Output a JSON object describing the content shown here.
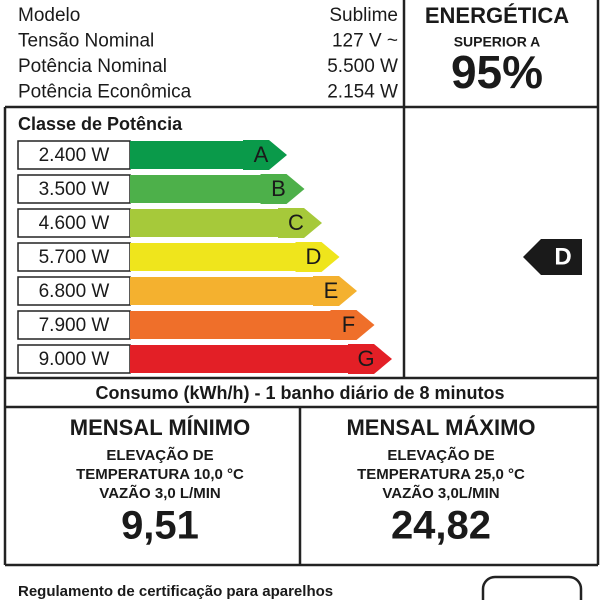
{
  "specs": [
    {
      "label": "Modelo",
      "value": "Sublime"
    },
    {
      "label": "Tensão Nominal",
      "value": "127 V ~"
    },
    {
      "label": "Potência Nominal",
      "value": "5.500 W"
    },
    {
      "label": "Potência Econômica",
      "value": "2.154 W"
    }
  ],
  "efficiency": {
    "heading": "ENERGÉTICA",
    "subheading": "SUPERIOR A",
    "value": "95%"
  },
  "power_class": {
    "title": "Classe de Potência",
    "rows": [
      {
        "power": "2.400 W",
        "class": "A",
        "color": "#0a9a4a"
      },
      {
        "power": "3.500 W",
        "class": "B",
        "color": "#4db04a"
      },
      {
        "power": "4.600 W",
        "class": "C",
        "color": "#a6c93a"
      },
      {
        "power": "5.700 W",
        "class": "D",
        "color": "#efe51c"
      },
      {
        "power": "6.800 W",
        "class": "E",
        "color": "#f4b12f"
      },
      {
        "power": "7.900 W",
        "class": "F",
        "color": "#ef6f2a"
      },
      {
        "power": "9.000 W",
        "class": "G",
        "color": "#e31f26"
      }
    ],
    "current_class": "D"
  },
  "consumption": {
    "title": "Consumo (kWh/h) - 1 banho diário de 8 minutos",
    "minimum": {
      "title": "MENSAL MÍNIMO",
      "lines": [
        "ELEVAÇÃO DE",
        "TEMPERATURA 10,0 °C",
        "VAZÃO 3,0 L/MIN"
      ],
      "value": "9,51"
    },
    "maximum": {
      "title": "MENSAL MÁXIMO",
      "lines": [
        "ELEVAÇÃO DE",
        "TEMPERATURA 25,0 °C",
        "VAZÃO 3,0L/MIN"
      ],
      "value": "24,82"
    }
  },
  "footer": {
    "text": "Regulamento de certificação para aparelhos"
  }
}
